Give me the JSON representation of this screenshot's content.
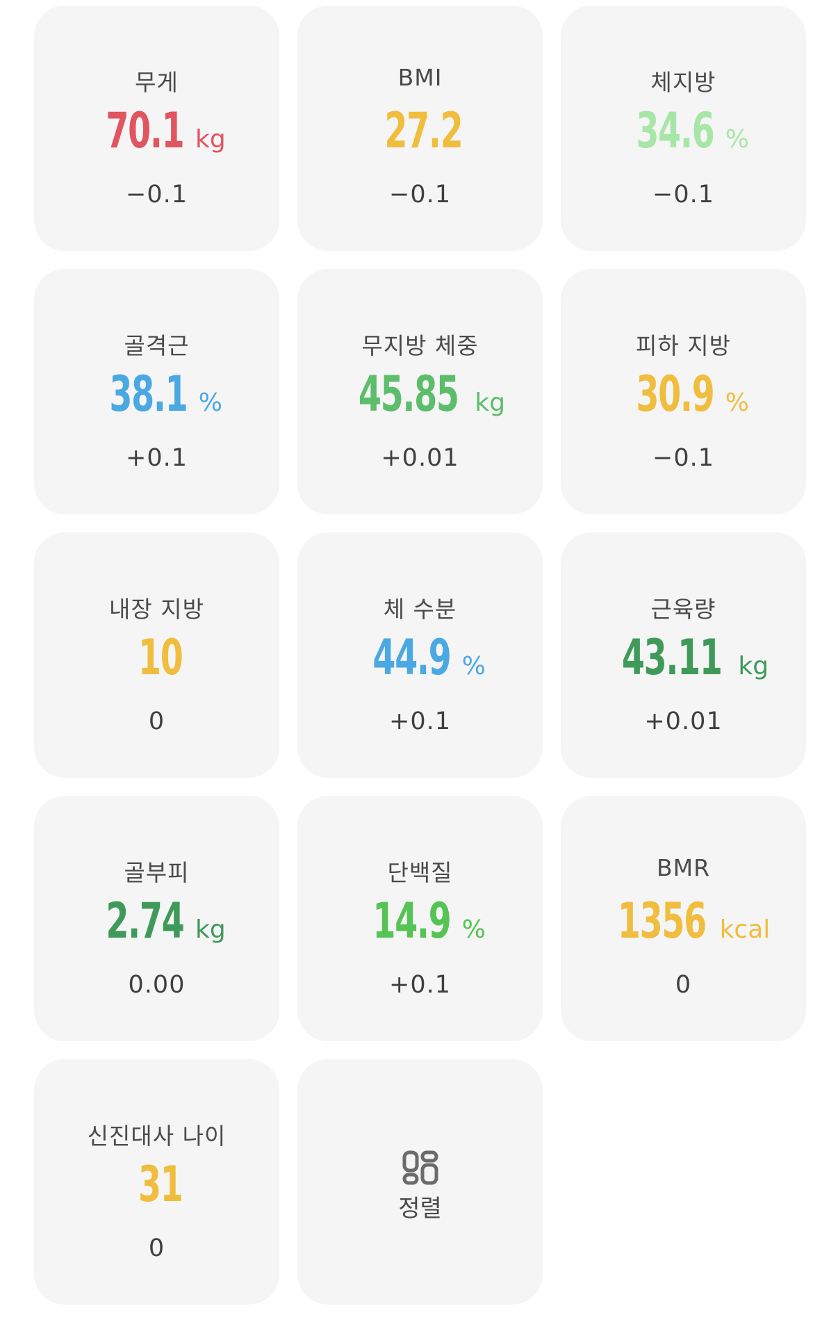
{
  "metrics": [
    {
      "label": "무게",
      "value": "70.1",
      "unit": "kg",
      "delta": "−0.1",
      "color": "#e0555f"
    },
    {
      "label": "BMI",
      "value": "27.2",
      "unit": "",
      "delta": "−0.1",
      "color": "#f0bd3f"
    },
    {
      "label": "체지방",
      "value": "34.6",
      "unit": "%",
      "delta": "−0.1",
      "color": "#a8e6a8"
    },
    {
      "label": "골격근",
      "value": "38.1",
      "unit": "%",
      "delta": "+0.1",
      "color": "#4aa8e3"
    },
    {
      "label": "무지방 체중",
      "value": "45.85",
      "unit": "kg",
      "delta": "+0.01",
      "color": "#5cbd6b"
    },
    {
      "label": "피하 지방",
      "value": "30.9",
      "unit": "%",
      "delta": "−0.1",
      "color": "#f0bd3f"
    },
    {
      "label": "내장 지방",
      "value": "10",
      "unit": "",
      "delta": "0",
      "color": "#f0bd3f"
    },
    {
      "label": "체 수분",
      "value": "44.9",
      "unit": "%",
      "delta": "+0.1",
      "color": "#4aa8e3"
    },
    {
      "label": "근육량",
      "value": "43.11",
      "unit": "kg",
      "delta": "+0.01",
      "color": "#3f9a5a"
    },
    {
      "label": "골부피",
      "value": "2.74",
      "unit": "kg",
      "delta": "0.00",
      "color": "#3f9a5a"
    },
    {
      "label": "단백질",
      "value": "14.9",
      "unit": "%",
      "delta": "+0.1",
      "color": "#55c455"
    },
    {
      "label": "BMR",
      "value": "1356",
      "unit": "kcal",
      "delta": "0",
      "color": "#f0bd3f"
    },
    {
      "label": "신진대사 나이",
      "value": "31",
      "unit": "",
      "delta": "0",
      "color": "#f0bd3f"
    }
  ],
  "sort": {
    "label": "정렬",
    "icon": "sort-grid-icon"
  }
}
